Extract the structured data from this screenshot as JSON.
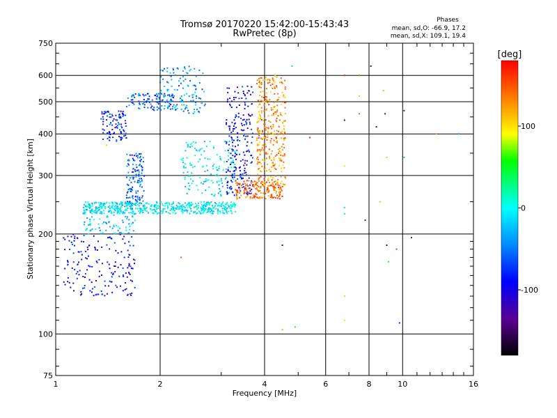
{
  "chart_data": {
    "type": "scatter",
    "title": "Tromsø 20170220 15:42:00-15:43:43",
    "subtitle": "RwPretec (8p)",
    "xlabel": "Frequency [MHz]",
    "ylabel": "Stationary phase Virtual Height [km]",
    "x_scale": "log",
    "y_scale": "log",
    "xlim": [
      1,
      16
    ],
    "ylim": [
      75,
      750
    ],
    "x_ticks": [
      1,
      2,
      4,
      6,
      8,
      10,
      16
    ],
    "y_ticks": [
      75,
      100,
      200,
      300,
      400,
      500,
      600,
      750
    ],
    "x_tick_labels": [
      "1",
      "2",
      "4",
      "6",
      "8",
      "10",
      "16"
    ],
    "y_tick_labels": [
      "75",
      "100",
      "200",
      "300",
      "400",
      "500",
      "600",
      "750"
    ],
    "grid": true,
    "annotation": {
      "heading": "Phases",
      "line1": "mean, sd,O: -66.9, 17.2",
      "line2": "mean, sd,X: 109.1, 19.4"
    },
    "colorbar": {
      "label": "[deg]",
      "range": [
        -180,
        180
      ],
      "ticks": [
        100,
        0,
        -100
      ],
      "tick_labels": [
        "100",
        "0",
        "-100"
      ]
    },
    "traces": [
      {
        "x_range": [
          1.2,
          3.3
        ],
        "y_range": [
          230,
          250
        ],
        "phase": -5,
        "count": 500
      },
      {
        "x_range": [
          1.2,
          1.7
        ],
        "y_range": [
          200,
          250
        ],
        "phase": -20,
        "count": 120
      },
      {
        "x_range": [
          1.6,
          1.8
        ],
        "y_range": [
          250,
          350
        ],
        "phase": -60,
        "count": 120
      },
      {
        "x_range": [
          1.35,
          1.6
        ],
        "y_range": [
          380,
          470
        ],
        "phase": -80,
        "count": 100
      },
      {
        "x_range": [
          1.6,
          2.2
        ],
        "y_range": [
          470,
          530
        ],
        "phase": -60,
        "count": 100
      },
      {
        "x_range": [
          2.0,
          2.7
        ],
        "y_range": [
          460,
          640
        ],
        "phase": -40,
        "count": 120
      },
      {
        "x_range": [
          2.3,
          3.3
        ],
        "y_range": [
          260,
          380
        ],
        "phase": -10,
        "count": 150
      },
      {
        "x_range": [
          3.1,
          3.7
        ],
        "y_range": [
          260,
          560
        ],
        "phase": -90,
        "count": 220
      },
      {
        "x_range": [
          3.3,
          4.5
        ],
        "y_range": [
          255,
          290
        ],
        "phase": 140,
        "count": 150
      },
      {
        "x_range": [
          3.8,
          4.6
        ],
        "y_range": [
          270,
          600
        ],
        "phase": 130,
        "count": 350
      },
      {
        "x_range": [
          1.05,
          1.7
        ],
        "y_range": [
          130,
          200
        ],
        "phase": -90,
        "count": 180
      }
    ],
    "points": [
      {
        "x": 4.5,
        "y": 185,
        "phase": -120
      },
      {
        "x": 4.9,
        "y": 105,
        "phase": 40
      },
      {
        "x": 4.5,
        "y": 103,
        "phase": 120
      },
      {
        "x": 4.8,
        "y": 640,
        "phase": -20
      },
      {
        "x": 2.3,
        "y": 170,
        "phase": 150
      },
      {
        "x": 5.4,
        "y": 390,
        "phase": 170
      },
      {
        "x": 6.8,
        "y": 600,
        "phase": 170
      },
      {
        "x": 6.8,
        "y": 440,
        "phase": -150
      },
      {
        "x": 6.8,
        "y": 320,
        "phase": 100
      },
      {
        "x": 6.8,
        "y": 240,
        "phase": -10
      },
      {
        "x": 6.8,
        "y": 230,
        "phase": -10
      },
      {
        "x": 6.8,
        "y": 130,
        "phase": 110
      },
      {
        "x": 6.8,
        "y": 110,
        "phase": 100
      },
      {
        "x": 7.5,
        "y": 600,
        "phase": 150
      },
      {
        "x": 7.5,
        "y": 460,
        "phase": 140
      },
      {
        "x": 7.5,
        "y": 520,
        "phase": 110
      },
      {
        "x": 7.8,
        "y": 220,
        "phase": -120
      },
      {
        "x": 8.1,
        "y": 640,
        "phase": -160
      },
      {
        "x": 8.4,
        "y": 420,
        "phase": -150
      },
      {
        "x": 8.6,
        "y": 250,
        "phase": 110
      },
      {
        "x": 8.8,
        "y": 540,
        "phase": 120
      },
      {
        "x": 8.9,
        "y": 460,
        "phase": -140
      },
      {
        "x": 9.0,
        "y": 340,
        "phase": 110
      },
      {
        "x": 9.0,
        "y": 185,
        "phase": -120
      },
      {
        "x": 9.1,
        "y": 165,
        "phase": 60
      },
      {
        "x": 9.6,
        "y": 180,
        "phase": 160
      },
      {
        "x": 9.8,
        "y": 108,
        "phase": -80
      },
      {
        "x": 10.1,
        "y": 470,
        "phase": -130
      },
      {
        "x": 10.6,
        "y": 195,
        "phase": -140
      },
      {
        "x": 12.5,
        "y": 400,
        "phase": 130
      },
      {
        "x": 14.5,
        "y": 400,
        "phase": -40
      },
      {
        "x": 10.1,
        "y": 340,
        "phase": -30
      },
      {
        "x": 1.4,
        "y": 370,
        "phase": 110
      }
    ]
  }
}
